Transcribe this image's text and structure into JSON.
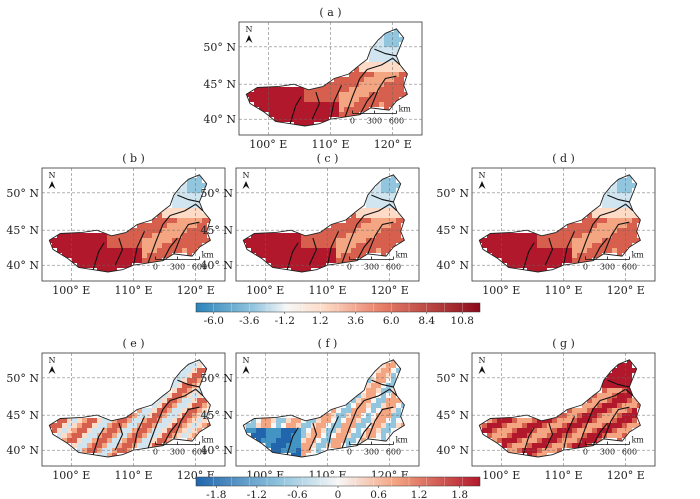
{
  "figure": {
    "panels": [
      {
        "id": "a",
        "label": "( a )",
        "row": 0,
        "col": 1,
        "lat_ticks": [
          "50° N",
          "45° N",
          "40° N"
        ],
        "lon_ticks": [
          "100° E",
          "110° E",
          "120° E"
        ],
        "scalebar": {
          "zero": "0",
          "mid": "300",
          "max": "600",
          "unit": "km"
        },
        "north": "N"
      },
      {
        "id": "b",
        "label": "( b )",
        "row": 1,
        "col": 0,
        "lat_ticks": [
          "50° N",
          "45° N",
          "40° N"
        ],
        "lon_ticks": [
          "100° E",
          "110° E",
          "120° E"
        ],
        "scalebar": {
          "zero": "0",
          "mid": "300",
          "max": "600",
          "unit": "km"
        },
        "north": "N"
      },
      {
        "id": "c",
        "label": "( c )",
        "row": 1,
        "col": 1,
        "lat_ticks": [
          "50° N",
          "45° N",
          "40° N"
        ],
        "lon_ticks": [
          "100° E",
          "110° E",
          "120° E"
        ],
        "scalebar": {
          "zero": "0",
          "mid": "300",
          "max": "600",
          "unit": "km"
        },
        "north": "N"
      },
      {
        "id": "d",
        "label": "( d )",
        "row": 1,
        "col": 2,
        "lat_ticks": [
          "50° N",
          "45° N",
          "40° N"
        ],
        "lon_ticks": [
          "100° E",
          "110° E",
          "120° E"
        ],
        "scalebar": {
          "zero": "0",
          "mid": "300",
          "max": "600",
          "unit": "km"
        },
        "north": "N"
      },
      {
        "id": "e",
        "label": "( e )",
        "row": 2,
        "col": 0,
        "lat_ticks": [
          "50° N",
          "45° N",
          "40° N"
        ],
        "lon_ticks": [
          "100° E",
          "110° E",
          "120° E"
        ],
        "scalebar": {
          "zero": "0",
          "mid": "300",
          "max": "600",
          "unit": "km"
        },
        "north": "N"
      },
      {
        "id": "f",
        "label": "( f )",
        "row": 2,
        "col": 1,
        "lat_ticks": [
          "50° N",
          "45° N",
          "40° N"
        ],
        "lon_ticks": [
          "100° E",
          "110° E",
          "120° E"
        ],
        "scalebar": {
          "zero": "0",
          "mid": "300",
          "max": "600",
          "unit": "km"
        },
        "north": "N"
      },
      {
        "id": "g",
        "label": "( g )",
        "row": 2,
        "col": 2,
        "lat_ticks": [
          "50° N",
          "45° N",
          "40° N"
        ],
        "lon_ticks": [
          "100° E",
          "110° E",
          "120° E"
        ],
        "scalebar": {
          "zero": "0",
          "mid": "300",
          "max": "600",
          "unit": "km"
        },
        "north": "N"
      }
    ],
    "colorbar_top": {
      "ticks": [
        "-6.0",
        "-3.6",
        "-1.2",
        "1.2",
        "3.6",
        "6.0",
        "8.4",
        "10.8"
      ],
      "range": [
        -7.2,
        12.0
      ],
      "applies_to": [
        "a",
        "b",
        "c",
        "d"
      ]
    },
    "colorbar_bottom": {
      "ticks": [
        "-1.8",
        "-1.2",
        "-0.6",
        "0",
        "0.6",
        "1.2",
        "1.8"
      ],
      "range": [
        -2.1,
        2.1
      ],
      "applies_to": [
        "e",
        "f",
        "g"
      ]
    },
    "colors": {
      "deep_red": "#b2182b",
      "red": "#d6604d",
      "salmon": "#f4a582",
      "pink": "#fddbc7",
      "white": "#f7f7f7",
      "light_blue": "#d1e5f0",
      "blue": "#92c5de",
      "mid_blue": "#4393c3",
      "dark_blue": "#2166ac"
    }
  }
}
